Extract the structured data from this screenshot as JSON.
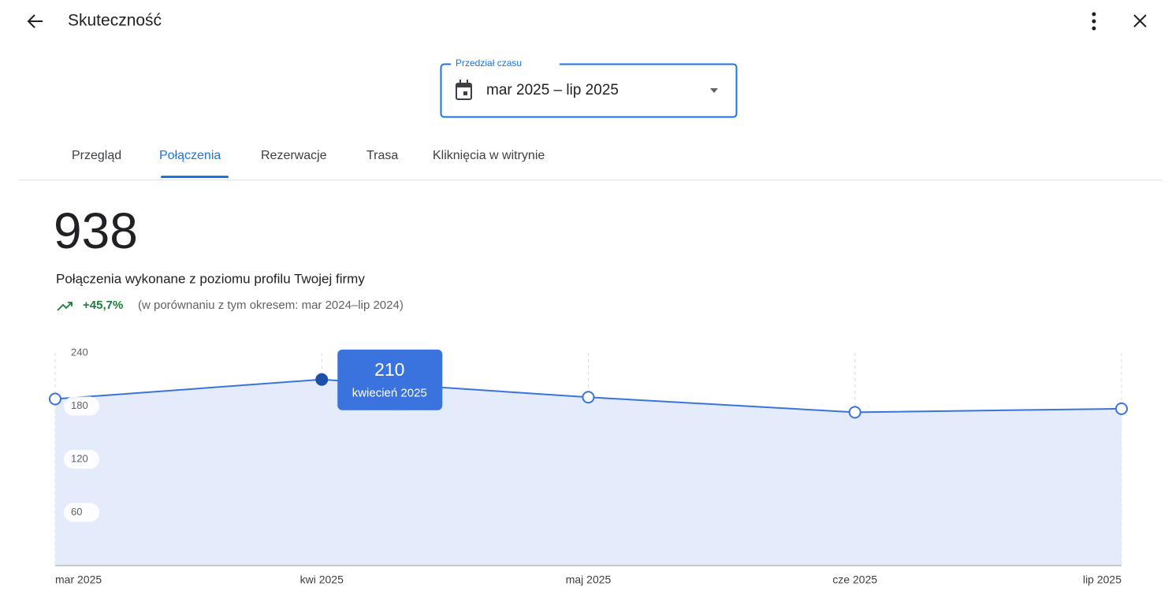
{
  "header": {
    "title": "Skuteczność"
  },
  "date_range": {
    "label": "Przedział czasu",
    "value": "mar 2025 – lip 2025"
  },
  "tabs": [
    "Przegląd",
    "Połączenia",
    "Rezerwacje",
    "Trasa",
    "Kliknięcia w witrynie"
  ],
  "summary": {
    "total": 938,
    "description": "Połączenia wykonane z poziomu profilu Twojej firmy",
    "change": "+45,7%",
    "comparison": "(w porównaniu z tym okresem: mar 2024–lip 2024)"
  },
  "chart_data": {
    "type": "area",
    "categories": [
      "mar 2025",
      "kwi 2025",
      "maj 2025",
      "cze 2025",
      "lip 2025"
    ],
    "values": [
      188,
      210,
      190,
      173,
      177
    ],
    "color": "#3b73de",
    "fill": "#e4ebfa",
    "ylim": [
      0,
      240
    ],
    "yticks": [
      60,
      120,
      180,
      240
    ],
    "grid": true,
    "tooltip_label": "kwiecień 2025"
  }
}
